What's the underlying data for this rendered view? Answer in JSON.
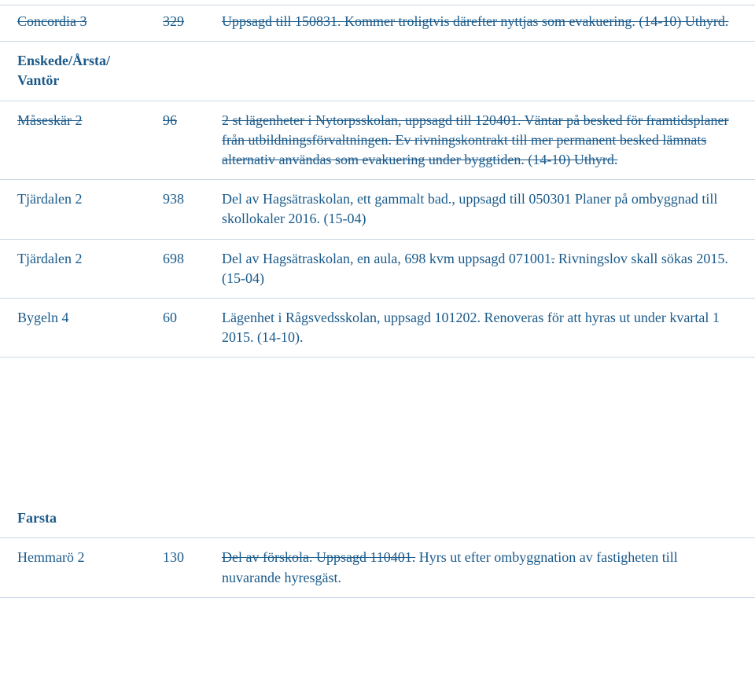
{
  "rows": [
    {
      "id": "concordia",
      "c1": "Concordia 3",
      "c2": "329",
      "c3": "Uppsagd till 150831. Kommer troligtvis därefter nyttjas som evakuering. (14-10) Uthyrd.",
      "strike": true
    },
    {
      "id": "enskede-heading",
      "c1": "Enskede/Årsta/\nVantör",
      "c2": "",
      "c3": "",
      "heading": true
    },
    {
      "id": "maseskar",
      "c1": "Måseskär 2",
      "c2": "96",
      "c3": "2 st lägenheter i Nytorpsskolan, uppsagd till 120401. Väntar på besked för framtidsplaner från utbildningsförvaltningen. Ev rivningskontrakt till mer permanent besked lämnats alternativ användas som evakuering under byggtiden. (14-10) Uthyrd.",
      "strike": true
    },
    {
      "id": "tjardalen1",
      "c1": "Tjärdalen 2",
      "c2": "938",
      "c3": "Del av Hagsätraskolan, ett gammalt bad., uppsagd till 050301 Planer på ombyggnad till skollokaler 2016. (15-04)"
    },
    {
      "id": "tjardalen2",
      "c1": "Tjärdalen 2",
      "c2": "698"
    },
    {
      "id": "bygeln",
      "c1": "Bygeln 4",
      "c2": "60",
      "c3": "Lägenhet i Rågsvedsskolan, uppsagd 101202. Renoveras för att hyras ut under kvartal 1 2015. (14-10)."
    },
    {
      "id": "farsta-heading",
      "c1": "Farsta",
      "c2": "",
      "c3": "",
      "heading": true
    },
    {
      "id": "hemmaro",
      "c1": "Hemmarö 2",
      "c2": "130"
    }
  ],
  "tjardalen2": {
    "p1": "Del av Hagsätraskolan, en aula, 698 kvm uppsagd 071001",
    "p2": ".",
    "p3": " Rivningslov skall sökas 2015. (15-04)"
  },
  "hemmaro": {
    "p1": "Del av förskola. Uppsagd 110401.",
    "p2": " Hyrs ut efter ombyggnation av fastigheten till nuvarande hyresgäst."
  },
  "colors": {
    "text": "#1a5a8a",
    "divider": "#c9d8e6"
  }
}
